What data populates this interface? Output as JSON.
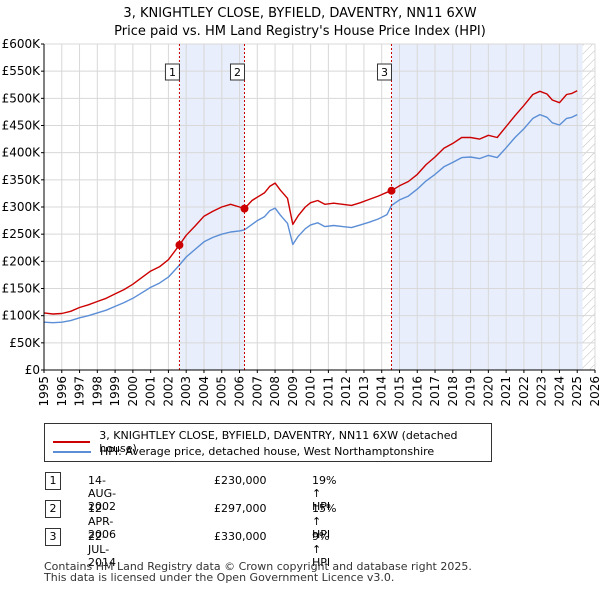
{
  "title": {
    "line1": "3, KNIGHTLEY CLOSE, BYFIELD, DAVENTRY, NN11 6XW",
    "line2": "Price paid vs. HM Land Registry's House Price Index (HPI)"
  },
  "legend": {
    "property_label": "3, KNIGHTLEY CLOSE, BYFIELD, DAVENTRY, NN11 6XW (detached house)",
    "hpi_label": "HPI: Average price, detached house, West Northamptonshire"
  },
  "sales": [
    {
      "num": "1",
      "date": "14-AUG-2002",
      "price": "£230,000",
      "hpi": "19% ↑ HPI"
    },
    {
      "num": "2",
      "date": "12-APR-2006",
      "price": "£297,000",
      "hpi": "15% ↑ HPI"
    },
    {
      "num": "3",
      "date": "22-JUL-2014",
      "price": "£330,000",
      "hpi": "9% ↑ HPI"
    }
  ],
  "footer": {
    "line1": "Contains HM Land Registry data © Crown copyright and database right 2025.",
    "line2": "This data is licensed under the Open Government Licence v3.0."
  },
  "colors": {
    "property": "#cc0000",
    "hpi": "#5b8ed6",
    "shade": "#e8eefb",
    "marker_line": "#cc0000"
  },
  "chart_data": {
    "type": "line",
    "title": "3, KNIGHTLEY CLOSE, BYFIELD, DAVENTRY, NN11 6XW — Price paid vs. HM Land Registry's House Price Index (HPI)",
    "xlabel": "",
    "ylabel": "",
    "xlim": [
      1995,
      2026
    ],
    "ylim": [
      0,
      600000
    ],
    "x_ticks": [
      1995,
      1996,
      1997,
      1998,
      1999,
      2000,
      2001,
      2002,
      2003,
      2004,
      2005,
      2006,
      2007,
      2008,
      2009,
      2010,
      2011,
      2012,
      2013,
      2014,
      2015,
      2016,
      2017,
      2018,
      2019,
      2020,
      2021,
      2022,
      2023,
      2024,
      2025,
      2026
    ],
    "y_ticks": [
      0,
      50000,
      100000,
      150000,
      200000,
      250000,
      300000,
      350000,
      400000,
      450000,
      500000,
      550000,
      600000
    ],
    "y_tick_labels": [
      "£0",
      "£50K",
      "£100K",
      "£150K",
      "£200K",
      "£250K",
      "£300K",
      "£350K",
      "£400K",
      "£450K",
      "£500K",
      "£550K",
      "£600K"
    ],
    "grid": true,
    "series": [
      {
        "name": "3, KNIGHTLEY CLOSE, BYFIELD, DAVENTRY, NN11 6XW (detached house)",
        "x": [
          1995,
          1995.5,
          1996,
          1996.5,
          1997,
          1997.5,
          1998,
          1998.5,
          1999,
          1999.5,
          2000,
          2000.5,
          2001,
          2001.5,
          2002,
          2002.62,
          2003,
          2003.5,
          2004,
          2004.5,
          2005,
          2005.5,
          2006,
          2006.28,
          2006.7,
          2007,
          2007.4,
          2007.7,
          2008,
          2008.3,
          2008.7,
          2009,
          2009.3,
          2009.7,
          2010,
          2010.4,
          2010.8,
          2011.3,
          2011.8,
          2012.3,
          2012.8,
          2013.3,
          2013.8,
          2014.3,
          2014.55,
          2015,
          2015.5,
          2016,
          2016.5,
          2017,
          2017.5,
          2018,
          2018.5,
          2019,
          2019.5,
          2020,
          2020.5,
          2021,
          2021.5,
          2022,
          2022.5,
          2022.9,
          2023.3,
          2023.6,
          2024,
          2024.4,
          2024.7,
          2025
        ],
        "values": [
          105000,
          103000,
          104000,
          108000,
          115000,
          120000,
          126000,
          132000,
          140000,
          148000,
          158000,
          170000,
          182000,
          190000,
          203000,
          230000,
          248000,
          265000,
          283000,
          292000,
          300000,
          305000,
          300000,
          297000,
          312000,
          318000,
          326000,
          338000,
          344000,
          331000,
          316000,
          268000,
          284000,
          300000,
          308000,
          312000,
          305000,
          307000,
          305000,
          303000,
          308000,
          314000,
          320000,
          327000,
          330000,
          339000,
          347000,
          360000,
          378000,
          392000,
          408000,
          417000,
          428000,
          428000,
          425000,
          432000,
          428000,
          448000,
          468000,
          487000,
          507000,
          513000,
          508000,
          497000,
          492000,
          507000,
          509000,
          514000
        ]
      },
      {
        "name": "HPI: Average price, detached house, West Northamptonshire",
        "x": [
          1995,
          1995.5,
          1996,
          1996.5,
          1997,
          1997.5,
          1998,
          1998.5,
          1999,
          1999.5,
          2000,
          2000.5,
          2001,
          2001.5,
          2002,
          2002.62,
          2003,
          2003.5,
          2004,
          2004.5,
          2005,
          2005.5,
          2006,
          2006.28,
          2006.7,
          2007,
          2007.4,
          2007.7,
          2008,
          2008.3,
          2008.7,
          2009,
          2009.3,
          2009.7,
          2010,
          2010.4,
          2010.8,
          2011.3,
          2011.8,
          2012.3,
          2012.8,
          2013.3,
          2013.8,
          2014.3,
          2014.55,
          2015,
          2015.5,
          2016,
          2016.5,
          2017,
          2017.5,
          2018,
          2018.5,
          2019,
          2019.5,
          2020,
          2020.5,
          2021,
          2021.5,
          2022,
          2022.5,
          2022.9,
          2023.3,
          2023.6,
          2024,
          2024.4,
          2024.7,
          2025
        ],
        "values": [
          88000,
          87000,
          88000,
          91000,
          96000,
          100000,
          105000,
          110000,
          117000,
          124000,
          132000,
          142000,
          152000,
          160000,
          171000,
          193000,
          208000,
          222000,
          236000,
          244000,
          250000,
          254000,
          256000,
          258000,
          268000,
          275000,
          282000,
          293000,
          298000,
          285000,
          270000,
          231000,
          246000,
          260000,
          267000,
          271000,
          264000,
          266000,
          264000,
          262000,
          267000,
          272000,
          278000,
          286000,
          303000,
          313000,
          320000,
          333000,
          348000,
          360000,
          374000,
          382000,
          391000,
          392000,
          389000,
          395000,
          391000,
          409000,
          428000,
          444000,
          463000,
          470000,
          465000,
          455000,
          451000,
          463000,
          465000,
          470000
        ]
      }
    ],
    "sales_points": [
      {
        "label": "1",
        "x": 2002.62,
        "y": 230000
      },
      {
        "label": "2",
        "x": 2006.28,
        "y": 297000
      },
      {
        "label": "3",
        "x": 2014.55,
        "y": 330000
      }
    ],
    "shaded_ranges": [
      [
        2002.62,
        2006.28
      ],
      [
        2014.55,
        2025.3
      ]
    ],
    "hatched_range": [
      2025.3,
      2026
    ]
  }
}
